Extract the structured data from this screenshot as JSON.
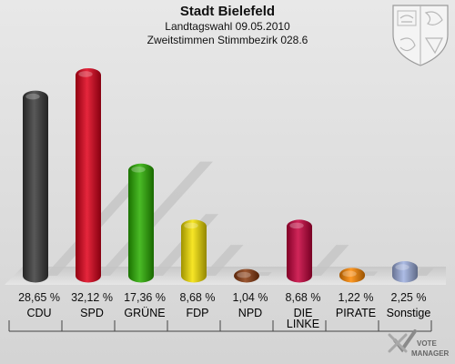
{
  "header": {
    "title": "Stadt Bielefeld",
    "subtitle": "Landtagswahl 09.05.2010",
    "subtitle2": "Zweitstimmen Stimmbezirk 028.6"
  },
  "logo": {
    "line1": "VOTE",
    "line2": "MANAGER"
  },
  "chart_data": {
    "type": "bar",
    "title": "Stadt Bielefeld",
    "subtitle": "Landtagswahl 09.05.2010 – Zweitstimmen Stimmbezirk 028.6",
    "xlabel": "",
    "ylabel": "",
    "ylim": [
      0,
      35
    ],
    "grid": false,
    "legend": "none",
    "categories": [
      "CDU",
      "SPD",
      "GRÜNE",
      "FDP",
      "NPD",
      "DIE LINKE",
      "PIRATE",
      "Sonstige"
    ],
    "values": [
      28.65,
      32.12,
      17.36,
      8.68,
      1.04,
      8.68,
      1.22,
      2.25
    ],
    "value_labels": [
      "28,65 %",
      "32,12 %",
      "17,36 %",
      "8,68 %",
      "1,04 %",
      "8,68 %",
      "1,22 %",
      "2,25 %"
    ],
    "colors": [
      "#3a3a3a",
      "#e0001a",
      "#2aaf00",
      "#f5e100",
      "#8b3a0f",
      "#c8003c",
      "#ff8800",
      "#9fb0e0"
    ]
  }
}
